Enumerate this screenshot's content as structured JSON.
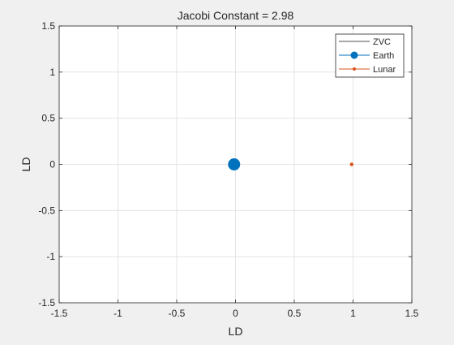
{
  "chart_data": {
    "type": "scatter",
    "title": "Jacobi Constant = 2.98",
    "xlabel": "LD",
    "ylabel": "LD",
    "xlim": [
      -1.5,
      1.5
    ],
    "ylim": [
      -1.5,
      1.5
    ],
    "xticks": [
      -1.5,
      -1,
      -0.5,
      0,
      0.5,
      1,
      1.5
    ],
    "yticks": [
      -1.5,
      -1,
      -0.5,
      0,
      0.5,
      1,
      1.5
    ],
    "xtick_labels": [
      "-1.5",
      "-1",
      "-0.5",
      "0",
      "0.5",
      "1",
      "1.5"
    ],
    "ytick_labels": [
      "-1.5",
      "-1",
      "-0.5",
      "0",
      "0.5",
      "1",
      "1.5"
    ],
    "grid": true,
    "legend_position": "top-right",
    "series": [
      {
        "name": "ZVC",
        "color": "#000000",
        "marker": "none",
        "points": []
      },
      {
        "name": "Earth",
        "color": "#0072BD",
        "marker": "circle-large",
        "points": [
          [
            -0.012,
            0
          ]
        ]
      },
      {
        "name": "Lunar",
        "color": "#D95319",
        "marker": "dot-small",
        "points": [
          [
            0.988,
            0
          ]
        ]
      }
    ]
  }
}
